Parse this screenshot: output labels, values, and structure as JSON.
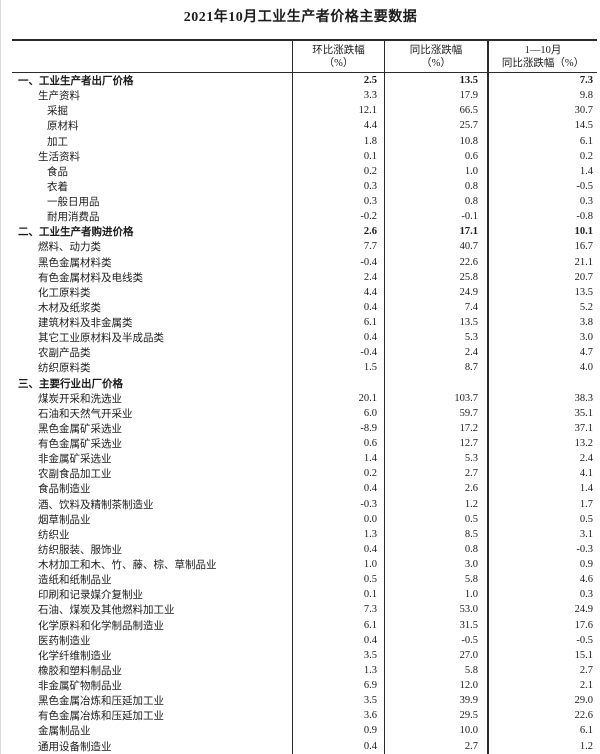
{
  "page": {
    "title": "2021年10月工业生产者价格主要数据"
  },
  "table": {
    "columns": [
      {
        "line1": "环比涨跌幅",
        "line2": "（%）"
      },
      {
        "line1": "同比涨跌幅",
        "line2": "（%）"
      },
      {
        "line1": "1—10月",
        "line2": "同比涨跌幅（%）"
      }
    ],
    "rows": [
      {
        "label": "一、工业生产者出厂价格",
        "indent": 1,
        "bold": true,
        "values": [
          "2.5",
          "13.5",
          "7.3"
        ]
      },
      {
        "label": "生产资料",
        "indent": 2,
        "bold": false,
        "values": [
          "3.3",
          "17.9",
          "9.8"
        ]
      },
      {
        "label": "采掘",
        "indent": 3,
        "bold": false,
        "values": [
          "12.1",
          "66.5",
          "30.7"
        ]
      },
      {
        "label": "原材料",
        "indent": 3,
        "bold": false,
        "values": [
          "4.4",
          "25.7",
          "14.5"
        ]
      },
      {
        "label": "加工",
        "indent": 3,
        "bold": false,
        "values": [
          "1.8",
          "10.8",
          "6.1"
        ]
      },
      {
        "label": "生活资料",
        "indent": 2,
        "bold": false,
        "values": [
          "0.1",
          "0.6",
          "0.2"
        ]
      },
      {
        "label": "食品",
        "indent": 3,
        "bold": false,
        "values": [
          "0.2",
          "1.0",
          "1.4"
        ]
      },
      {
        "label": "衣着",
        "indent": 3,
        "bold": false,
        "values": [
          "0.3",
          "0.8",
          "-0.5"
        ]
      },
      {
        "label": "一般日用品",
        "indent": 3,
        "bold": false,
        "values": [
          "0.3",
          "0.8",
          "0.3"
        ]
      },
      {
        "label": "耐用消费品",
        "indent": 3,
        "bold": false,
        "values": [
          "-0.2",
          "-0.1",
          "-0.8"
        ]
      },
      {
        "label": "二、工业生产者购进价格",
        "indent": 1,
        "bold": true,
        "values": [
          "2.6",
          "17.1",
          "10.1"
        ]
      },
      {
        "label": "燃料、动力类",
        "indent": 2,
        "bold": false,
        "values": [
          "7.7",
          "40.7",
          "16.7"
        ]
      },
      {
        "label": "黑色金属材料类",
        "indent": 2,
        "bold": false,
        "values": [
          "-0.4",
          "22.6",
          "21.1"
        ]
      },
      {
        "label": "有色金属材料及电线类",
        "indent": 2,
        "bold": false,
        "values": [
          "2.4",
          "25.8",
          "20.7"
        ]
      },
      {
        "label": "化工原料类",
        "indent": 2,
        "bold": false,
        "values": [
          "4.4",
          "24.9",
          "13.5"
        ]
      },
      {
        "label": "木材及纸浆类",
        "indent": 2,
        "bold": false,
        "values": [
          "0.4",
          "7.4",
          "5.2"
        ]
      },
      {
        "label": "建筑材料及非金属类",
        "indent": 2,
        "bold": false,
        "values": [
          "6.1",
          "13.5",
          "3.8"
        ]
      },
      {
        "label": "其它工业原材料及半成品类",
        "indent": 2,
        "bold": false,
        "values": [
          "0.4",
          "5.3",
          "3.0"
        ]
      },
      {
        "label": "农副产品类",
        "indent": 2,
        "bold": false,
        "values": [
          "-0.4",
          "2.4",
          "4.7"
        ]
      },
      {
        "label": "纺织原料类",
        "indent": 2,
        "bold": false,
        "values": [
          "1.5",
          "8.7",
          "4.0"
        ]
      },
      {
        "label": "三、主要行业出厂价格",
        "indent": 1,
        "bold": true,
        "values": [
          "",
          "",
          ""
        ]
      },
      {
        "label": "煤炭开采和洗选业",
        "indent": 2,
        "bold": false,
        "values": [
          "20.1",
          "103.7",
          "38.3"
        ]
      },
      {
        "label": "石油和天然气开采业",
        "indent": 2,
        "bold": false,
        "values": [
          "6.0",
          "59.7",
          "35.1"
        ]
      },
      {
        "label": "黑色金属矿采选业",
        "indent": 2,
        "bold": false,
        "values": [
          "-8.9",
          "17.2",
          "37.1"
        ]
      },
      {
        "label": "有色金属矿采选业",
        "indent": 2,
        "bold": false,
        "values": [
          "0.6",
          "12.7",
          "13.2"
        ]
      },
      {
        "label": "非金属矿采选业",
        "indent": 2,
        "bold": false,
        "values": [
          "1.4",
          "5.3",
          "2.4"
        ]
      },
      {
        "label": "农副食品加工业",
        "indent": 2,
        "bold": false,
        "values": [
          "0.2",
          "2.7",
          "4.1"
        ]
      },
      {
        "label": "食品制造业",
        "indent": 2,
        "bold": false,
        "values": [
          "0.4",
          "2.6",
          "1.4"
        ]
      },
      {
        "label": "酒、饮料及精制茶制造业",
        "indent": 2,
        "bold": false,
        "values": [
          "-0.3",
          "1.2",
          "1.7"
        ]
      },
      {
        "label": "烟草制品业",
        "indent": 2,
        "bold": false,
        "values": [
          "0.0",
          "0.5",
          "0.5"
        ]
      },
      {
        "label": "纺织业",
        "indent": 2,
        "bold": false,
        "values": [
          "1.3",
          "8.5",
          "3.1"
        ]
      },
      {
        "label": "纺织服装、服饰业",
        "indent": 2,
        "bold": false,
        "values": [
          "0.4",
          "0.8",
          "-0.3"
        ]
      },
      {
        "label": "木材加工和木、竹、藤、棕、草制品业",
        "indent": 2,
        "bold": false,
        "values": [
          "1.0",
          "3.0",
          "0.9"
        ]
      },
      {
        "label": "造纸和纸制品业",
        "indent": 2,
        "bold": false,
        "values": [
          "0.5",
          "5.8",
          "4.6"
        ]
      },
      {
        "label": "印刷和记录媒介复制业",
        "indent": 2,
        "bold": false,
        "values": [
          "0.1",
          "1.0",
          "0.3"
        ]
      },
      {
        "label": "石油、煤炭及其他燃料加工业",
        "indent": 2,
        "bold": false,
        "values": [
          "7.3",
          "53.0",
          "24.9"
        ]
      },
      {
        "label": "化学原料和化学制品制造业",
        "indent": 2,
        "bold": false,
        "values": [
          "6.1",
          "31.5",
          "17.6"
        ]
      },
      {
        "label": "医药制造业",
        "indent": 2,
        "bold": false,
        "values": [
          "0.4",
          "-0.5",
          "-0.5"
        ]
      },
      {
        "label": "化学纤维制造业",
        "indent": 2,
        "bold": false,
        "values": [
          "3.5",
          "27.0",
          "15.1"
        ]
      },
      {
        "label": "橡胶和塑料制品业",
        "indent": 2,
        "bold": false,
        "values": [
          "1.3",
          "5.8",
          "2.7"
        ]
      },
      {
        "label": "非金属矿物制品业",
        "indent": 2,
        "bold": false,
        "values": [
          "6.9",
          "12.0",
          "2.1"
        ]
      },
      {
        "label": "黑色金属冶炼和压延加工业",
        "indent": 2,
        "bold": false,
        "values": [
          "3.5",
          "39.9",
          "29.0"
        ]
      },
      {
        "label": "有色金属冶炼和压延加工业",
        "indent": 2,
        "bold": false,
        "values": [
          "3.6",
          "29.5",
          "22.6"
        ]
      },
      {
        "label": "金属制品业",
        "indent": 2,
        "bold": false,
        "values": [
          "0.9",
          "10.0",
          "6.1"
        ]
      },
      {
        "label": "通用设备制造业",
        "indent": 2,
        "bold": false,
        "values": [
          "0.4",
          "2.7",
          "1.2"
        ]
      }
    ]
  }
}
